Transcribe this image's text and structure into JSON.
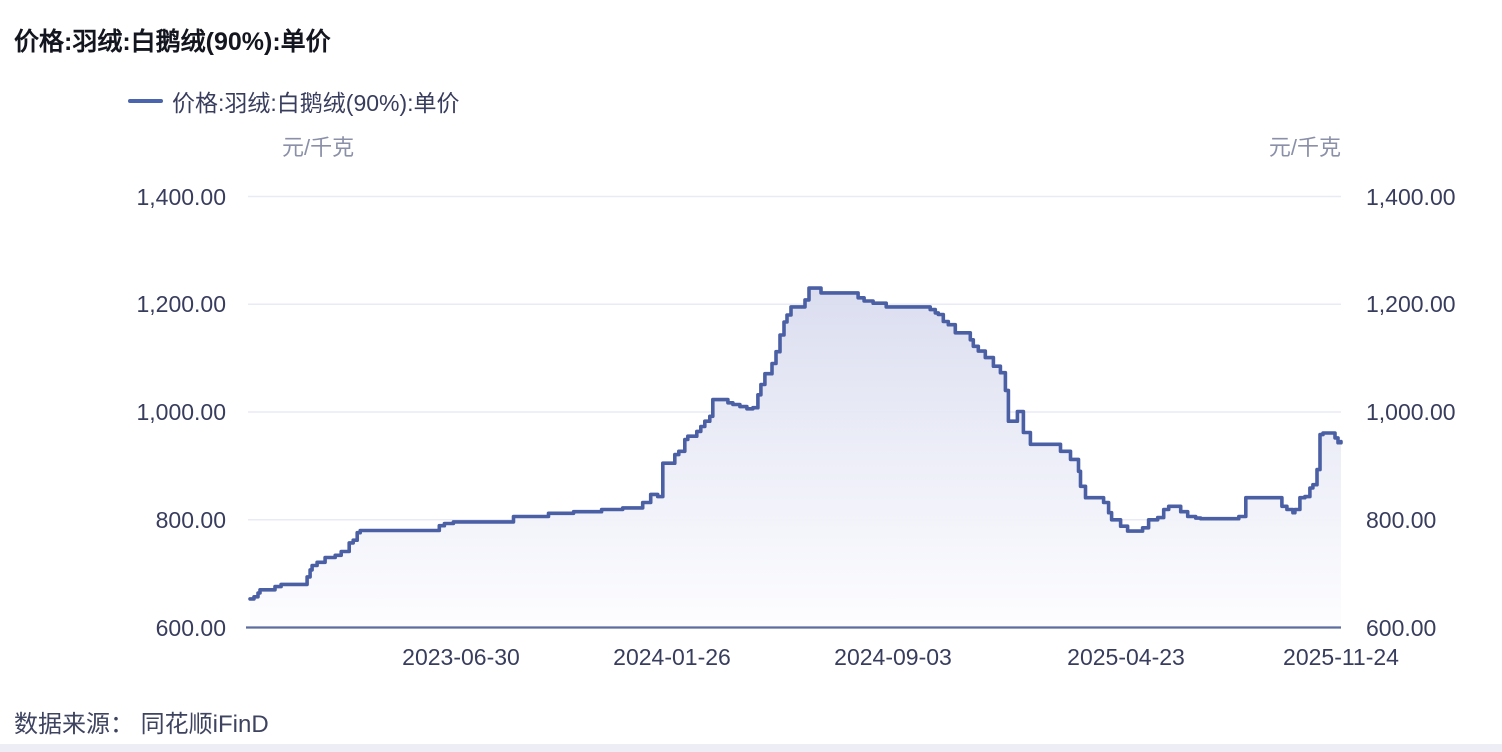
{
  "title": "价格:羽绒:白鹅绒(90%):单价",
  "legend": {
    "label": "价格:羽绒:白鹅绒(90%):单价"
  },
  "footer": {
    "source": "数据来源： 同花顺iFinD"
  },
  "colors": {
    "line": "#4a5fa4",
    "legend_marker": "#4a64ae",
    "grid": "#e8eaf5",
    "axis": "#5c6d9e",
    "area_top": "#d9dcef",
    "area_bottom": "#fdfdff",
    "title": "#14161f",
    "tick_label": "#383d5e",
    "unit_label": "#8b90a9",
    "footer": "#3e4360",
    "bottom_strip": "#ededf5"
  },
  "chart_data": {
    "type": "area",
    "title": "价格:羽绒:白鹅绒(90%):单价",
    "interpolation": "step-after",
    "grid": "horizontal-only",
    "legend_position": "top",
    "unit_left": "元/千克",
    "unit_right": "元/千克",
    "ylabel": "元/千克",
    "ylim": [
      600,
      1400
    ],
    "y_ticks": [
      {
        "value": 1400,
        "label": "1,400.00"
      },
      {
        "value": 1200,
        "label": "1,200.00"
      },
      {
        "value": 1000,
        "label": "1,000.00"
      },
      {
        "value": 800,
        "label": "800.00"
      },
      {
        "value": 600,
        "label": "600.00"
      }
    ],
    "x_ticks": [
      "2023-06-30",
      "2024-01-26",
      "2024-09-03",
      "2025-04-23",
      "2025-11-24"
    ],
    "series": [
      {
        "name": "价格:羽绒:白鹅绒(90%):单价",
        "color": "#4a5fa4",
        "points": [
          [
            "2022-12-01",
            653
          ],
          [
            "2022-12-05",
            657
          ],
          [
            "2022-12-09",
            664
          ],
          [
            "2022-12-11",
            670
          ],
          [
            "2022-12-26",
            676
          ],
          [
            "2023-01-01",
            680
          ],
          [
            "2023-01-27",
            694
          ],
          [
            "2023-01-30",
            707
          ],
          [
            "2023-02-01",
            715
          ],
          [
            "2023-02-06",
            721
          ],
          [
            "2023-02-14",
            730
          ],
          [
            "2023-02-24",
            734
          ],
          [
            "2023-03-02",
            741
          ],
          [
            "2023-03-10",
            757
          ],
          [
            "2023-03-14",
            762
          ],
          [
            "2023-03-18",
            776
          ],
          [
            "2023-03-21",
            780
          ],
          [
            "2023-06-08",
            789
          ],
          [
            "2023-06-13",
            793
          ],
          [
            "2023-06-22",
            796
          ],
          [
            "2023-08-21",
            806
          ],
          [
            "2023-09-25",
            812
          ],
          [
            "2023-10-20",
            815
          ],
          [
            "2023-11-17",
            819
          ],
          [
            "2023-12-08",
            822
          ],
          [
            "2023-12-28",
            832
          ],
          [
            "2024-01-05",
            847
          ],
          [
            "2024-01-12",
            843
          ],
          [
            "2024-01-17",
            905
          ],
          [
            "2024-01-29",
            921
          ],
          [
            "2024-02-02",
            927
          ],
          [
            "2024-02-08",
            949
          ],
          [
            "2024-02-11",
            955
          ],
          [
            "2024-02-20",
            964
          ],
          [
            "2024-02-24",
            973
          ],
          [
            "2024-02-28",
            983
          ],
          [
            "2024-03-04",
            992
          ],
          [
            "2024-03-07",
            1023
          ],
          [
            "2024-03-22",
            1017
          ],
          [
            "2024-03-27",
            1014
          ],
          [
            "2024-04-03",
            1010
          ],
          [
            "2024-04-10",
            1006
          ],
          [
            "2024-04-16",
            1008
          ],
          [
            "2024-04-21",
            1032
          ],
          [
            "2024-04-24",
            1051
          ],
          [
            "2024-04-28",
            1071
          ],
          [
            "2024-05-05",
            1090
          ],
          [
            "2024-05-09",
            1112
          ],
          [
            "2024-05-13",
            1143
          ],
          [
            "2024-05-17",
            1167
          ],
          [
            "2024-05-20",
            1180
          ],
          [
            "2024-05-24",
            1195
          ],
          [
            "2024-06-07",
            1208
          ],
          [
            "2024-06-11",
            1230
          ],
          [
            "2024-06-23",
            1221
          ],
          [
            "2024-07-30",
            1212
          ],
          [
            "2024-08-05",
            1206
          ],
          [
            "2024-08-14",
            1202
          ],
          [
            "2024-08-27",
            1195
          ],
          [
            "2024-10-10",
            1190
          ],
          [
            "2024-10-15",
            1184
          ],
          [
            "2024-10-18",
            1181
          ],
          [
            "2024-10-23",
            1168
          ],
          [
            "2024-10-28",
            1162
          ],
          [
            "2024-11-04",
            1147
          ],
          [
            "2024-11-19",
            1134
          ],
          [
            "2024-11-22",
            1122
          ],
          [
            "2024-11-27",
            1113
          ],
          [
            "2024-12-04",
            1101
          ],
          [
            "2024-12-12",
            1085
          ],
          [
            "2024-12-19",
            1073
          ],
          [
            "2024-12-24",
            1040
          ],
          [
            "2024-12-27",
            983
          ],
          [
            "2025-01-05",
            1001
          ],
          [
            "2025-01-11",
            962
          ],
          [
            "2025-01-18",
            940
          ],
          [
            "2025-02-17",
            927
          ],
          [
            "2025-02-27",
            912
          ],
          [
            "2025-03-07",
            890
          ],
          [
            "2025-03-09",
            862
          ],
          [
            "2025-03-14",
            841
          ],
          [
            "2025-04-01",
            832
          ],
          [
            "2025-04-06",
            813
          ],
          [
            "2025-04-09",
            800
          ],
          [
            "2025-04-18",
            788
          ],
          [
            "2025-04-25",
            779
          ],
          [
            "2025-05-10",
            785
          ],
          [
            "2025-05-16",
            800
          ],
          [
            "2025-05-25",
            804
          ],
          [
            "2025-05-31",
            819
          ],
          [
            "2025-06-05",
            825
          ],
          [
            "2025-06-17",
            815
          ],
          [
            "2025-06-24",
            806
          ],
          [
            "2025-07-02",
            803
          ],
          [
            "2025-07-07",
            802
          ],
          [
            "2025-08-14",
            806
          ],
          [
            "2025-08-21",
            841
          ],
          [
            "2025-09-26",
            825
          ],
          [
            "2025-10-01",
            819
          ],
          [
            "2025-10-07",
            813
          ],
          [
            "2025-10-09",
            819
          ],
          [
            "2025-10-14",
            841
          ],
          [
            "2025-10-19",
            843
          ],
          [
            "2025-10-24",
            859
          ],
          [
            "2025-10-27",
            865
          ],
          [
            "2025-10-31",
            893
          ],
          [
            "2025-11-03",
            958
          ],
          [
            "2025-11-06",
            961
          ],
          [
            "2025-11-18",
            952
          ],
          [
            "2025-11-21",
            943
          ],
          [
            "2025-11-24",
            945
          ]
        ]
      }
    ]
  }
}
